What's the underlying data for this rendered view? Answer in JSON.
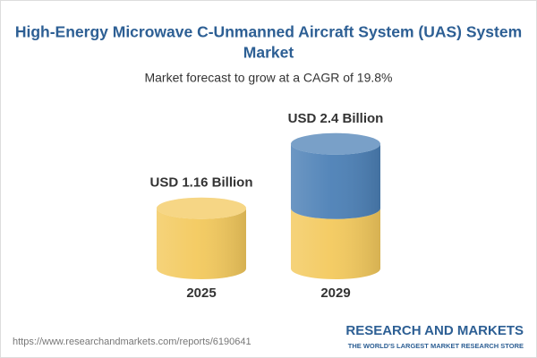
{
  "chart_data": {
    "type": "cylinder",
    "title_lines": [
      "High-Energy Microwave C-Unmanned Aircraft System (UAS) System",
      "Market"
    ],
    "subtitle": "Market forecast to grow at a CAGR of 19.8%",
    "categories": [
      "2025",
      "2029"
    ],
    "values": [
      1.16,
      2.4
    ],
    "value_labels": [
      "USD 1.16 Billion",
      "USD 2.4 Billion"
    ],
    "color": "#f3c95d",
    "growth_color": "#4c80b6",
    "source": "https://www.researchandmarkets.com/reports/6190641",
    "brand": "RESEARCH AND MARKETS",
    "tagline": "THE WORLD'S LARGEST MARKET RESEARCH STORE"
  }
}
